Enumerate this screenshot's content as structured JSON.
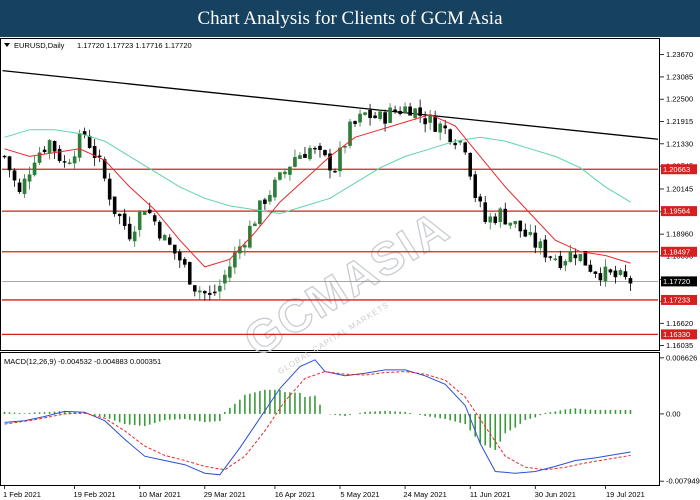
{
  "banner": {
    "title": "Chart Analysis for Clients of GCM Asia"
  },
  "watermark": {
    "text": "GCMASIA",
    "subtext": "GLOBAL CAPITAL MARKETS"
  },
  "colors": {
    "bull": "#2f7d3a",
    "bear": "#000000",
    "ma_fast": "#e8282d",
    "ma_slow": "#5fd6a6",
    "level": "#d61f1f",
    "trend": "#000000",
    "macd_line": "#2e4fd3",
    "signal": "#e8282d",
    "hist": "#3a9a3a"
  },
  "chart_data": [
    {
      "type": "candlestick",
      "header": {
        "symbol": "EURUSD,Daily",
        "ohlc": "1.17720 1.17723 1.17716 1.17720"
      },
      "ylim": [
        1.1592,
        1.2408
      ],
      "y_ticks": [
        "1.23670",
        "1.23085",
        "1.22500",
        "1.21915",
        "1.21330",
        "1.20745",
        "1.20145",
        "1.19545",
        "1.18960",
        "1.18390",
        "1.17770",
        "1.17200",
        "1.16620",
        "1.16035"
      ],
      "y_tick_values": [
        1.2367,
        1.23085,
        1.225,
        1.21915,
        1.2133,
        1.20745,
        1.20145,
        1.19545,
        1.1896,
        1.1839,
        1.1777,
        1.172,
        1.1662,
        1.16035
      ],
      "current_price": {
        "label": "1.17720",
        "value": 1.1772
      },
      "levels": [
        {
          "label": "1.20663",
          "value": 1.20663
        },
        {
          "label": "1.19564",
          "value": 1.19564
        },
        {
          "label": "1.18497",
          "value": 1.18497
        },
        {
          "label": "1.17233",
          "value": 1.17233
        },
        {
          "label": "1.16330",
          "value": 1.1633
        }
      ],
      "trendline": {
        "from": {
          "x": 0,
          "y": 1.2325
        },
        "to": {
          "x": 129,
          "y": 1.2145
        }
      },
      "x_labels": [
        {
          "label": "1 Feb 2021",
          "x": 0
        },
        {
          "label": "19 Feb 2021",
          "x": 14
        },
        {
          "label": "10 Mar 2021",
          "x": 27
        },
        {
          "label": "29 Mar 2021",
          "x": 40
        },
        {
          "label": "16 Apr 2021",
          "x": 54
        },
        {
          "label": "5 May 2021",
          "x": 67
        },
        {
          "label": "24 May 2021",
          "x": 80
        },
        {
          "label": "11 Jun 2021",
          "x": 93
        },
        {
          "label": "30 Jun 2021",
          "x": 106
        },
        {
          "label": "19 Jul 2021",
          "x": 120
        }
      ],
      "anchors": [
        [
          0,
          1.21
        ],
        [
          3,
          1.2
        ],
        [
          6,
          1.21
        ],
        [
          9,
          1.214
        ],
        [
          12,
          1.208
        ],
        [
          16,
          1.216
        ],
        [
          19,
          1.208
        ],
        [
          22,
          1.196
        ],
        [
          25,
          1.19
        ],
        [
          28,
          1.197
        ],
        [
          30,
          1.193
        ],
        [
          32,
          1.188
        ],
        [
          35,
          1.183
        ],
        [
          38,
          1.176
        ],
        [
          41,
          1.173
        ],
        [
          43,
          1.176
        ],
        [
          46,
          1.184
        ],
        [
          49,
          1.191
        ],
        [
          52,
          1.199
        ],
        [
          55,
          1.204
        ],
        [
          58,
          1.21
        ],
        [
          61,
          1.212
        ],
        [
          64,
          1.209
        ],
        [
          66,
          1.207
        ],
        [
          69,
          1.217
        ],
        [
          72,
          1.221
        ],
        [
          75,
          1.22
        ],
        [
          78,
          1.222
        ],
        [
          81,
          1.223
        ],
        [
          84,
          1.22
        ],
        [
          87,
          1.218
        ],
        [
          90,
          1.215
        ],
        [
          92,
          1.213
        ],
        [
          94,
          1.2
        ],
        [
          96,
          1.193
        ],
        [
          99,
          1.195
        ],
        [
          102,
          1.192
        ],
        [
          105,
          1.188
        ],
        [
          108,
          1.185
        ],
        [
          111,
          1.183
        ],
        [
          114,
          1.185
        ],
        [
          117,
          1.181
        ],
        [
          120,
          1.179
        ],
        [
          123,
          1.178
        ],
        [
          125,
          1.1772
        ]
      ],
      "ma_fast": [
        [
          0,
          1.212
        ],
        [
          5,
          1.21
        ],
        [
          10,
          1.211
        ],
        [
          15,
          1.212
        ],
        [
          20,
          1.209
        ],
        [
          25,
          1.202
        ],
        [
          30,
          1.196
        ],
        [
          35,
          1.188
        ],
        [
          40,
          1.181
        ],
        [
          45,
          1.183
        ],
        [
          50,
          1.19
        ],
        [
          55,
          1.198
        ],
        [
          60,
          1.204
        ],
        [
          65,
          1.21
        ],
        [
          70,
          1.215
        ],
        [
          75,
          1.217
        ],
        [
          80,
          1.219
        ],
        [
          85,
          1.221
        ],
        [
          90,
          1.218
        ],
        [
          95,
          1.21
        ],
        [
          100,
          1.202
        ],
        [
          105,
          1.195
        ],
        [
          110,
          1.188
        ],
        [
          115,
          1.185
        ],
        [
          120,
          1.184
        ],
        [
          125,
          1.182
        ]
      ],
      "ma_slow": [
        [
          0,
          1.215
        ],
        [
          5,
          1.217
        ],
        [
          10,
          1.217
        ],
        [
          15,
          1.216
        ],
        [
          20,
          1.214
        ],
        [
          25,
          1.21
        ],
        [
          30,
          1.206
        ],
        [
          35,
          1.202
        ],
        [
          40,
          1.199
        ],
        [
          45,
          1.197
        ],
        [
          50,
          1.196
        ],
        [
          55,
          1.195
        ],
        [
          60,
          1.197
        ],
        [
          65,
          1.199
        ],
        [
          70,
          1.203
        ],
        [
          75,
          1.207
        ],
        [
          80,
          1.21
        ],
        [
          85,
          1.212
        ],
        [
          90,
          1.214
        ],
        [
          95,
          1.215
        ],
        [
          100,
          1.214
        ],
        [
          105,
          1.212
        ],
        [
          110,
          1.21
        ],
        [
          115,
          1.207
        ],
        [
          120,
          1.202
        ],
        [
          125,
          1.198
        ]
      ]
    },
    {
      "type": "macd",
      "label": "MACD(12,26,9) -0.004532 -0.004883 0.000351",
      "ylim": [
        -0.0084,
        0.0072
      ],
      "y_ticks": [
        "0.006626",
        "0.00",
        "-0.007949"
      ],
      "y_tick_values": [
        0.006626,
        0.0,
        -0.007949
      ],
      "macd": [
        [
          0,
          -0.001
        ],
        [
          4,
          -0.0008
        ],
        [
          8,
          -0.0003
        ],
        [
          12,
          0.0003
        ],
        [
          16,
          0.0002
        ],
        [
          20,
          -0.0008
        ],
        [
          24,
          -0.003
        ],
        [
          28,
          -0.005
        ],
        [
          32,
          -0.0055
        ],
        [
          36,
          -0.006
        ],
        [
          40,
          -0.007
        ],
        [
          43,
          -0.0072
        ],
        [
          47,
          -0.004
        ],
        [
          51,
          -0.0005
        ],
        [
          55,
          0.003
        ],
        [
          59,
          0.0056
        ],
        [
          62,
          0.0064
        ],
        [
          64,
          0.005
        ],
        [
          68,
          0.0045
        ],
        [
          72,
          0.0048
        ],
        [
          76,
          0.0052
        ],
        [
          80,
          0.0052
        ],
        [
          84,
          0.0045
        ],
        [
          88,
          0.0035
        ],
        [
          92,
          0.001
        ],
        [
          95,
          -0.0035
        ],
        [
          98,
          -0.0068
        ],
        [
          102,
          -0.007
        ],
        [
          106,
          -0.0068
        ],
        [
          110,
          -0.0062
        ],
        [
          114,
          -0.0055
        ],
        [
          118,
          -0.0052
        ],
        [
          122,
          -0.0048
        ],
        [
          125,
          -0.0045
        ]
      ],
      "signal": [
        [
          0,
          -0.0012
        ],
        [
          6,
          -0.0007
        ],
        [
          12,
          0.0
        ],
        [
          16,
          0.0001
        ],
        [
          20,
          -0.0005
        ],
        [
          24,
          -0.002
        ],
        [
          28,
          -0.0038
        ],
        [
          32,
          -0.0049
        ],
        [
          36,
          -0.0055
        ],
        [
          40,
          -0.0062
        ],
        [
          44,
          -0.0066
        ],
        [
          48,
          -0.005
        ],
        [
          52,
          -0.002
        ],
        [
          56,
          0.0015
        ],
        [
          60,
          0.0042
        ],
        [
          64,
          0.005
        ],
        [
          68,
          0.0047
        ],
        [
          72,
          0.0046
        ],
        [
          76,
          0.0049
        ],
        [
          80,
          0.005
        ],
        [
          84,
          0.0047
        ],
        [
          88,
          0.004
        ],
        [
          92,
          0.002
        ],
        [
          96,
          -0.0015
        ],
        [
          100,
          -0.005
        ],
        [
          104,
          -0.0063
        ],
        [
          108,
          -0.0066
        ],
        [
          112,
          -0.0063
        ],
        [
          116,
          -0.0058
        ],
        [
          120,
          -0.0054
        ],
        [
          125,
          -0.0049
        ]
      ]
    }
  ]
}
